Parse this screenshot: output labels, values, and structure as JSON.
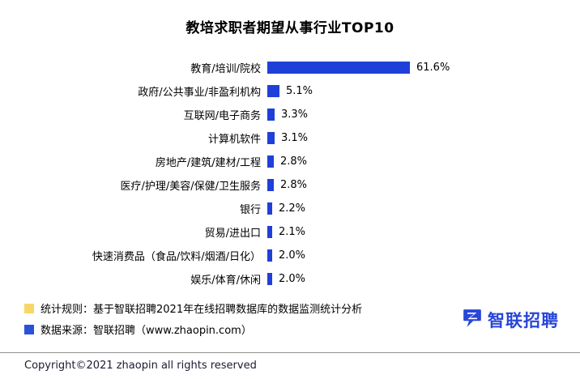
{
  "chart_data": {
    "type": "bar",
    "orientation": "horizontal",
    "title": "教培求职者期望从事行业TOP10",
    "unit": "%",
    "categories": [
      "教育/培训/院校",
      "政府/公共事业/非盈利机构",
      "互联网/电子商务",
      "计算机软件",
      "房地产/建筑/建材/工程",
      "医疗/护理/美容/保健/卫生服务",
      "银行",
      "贸易/进出口",
      "快速消费品（食品/饮料/烟酒/日化）",
      "娱乐/体育/休闲"
    ],
    "values": [
      61.6,
      5.1,
      3.3,
      3.1,
      2.8,
      2.8,
      2.2,
      2.1,
      2.0,
      2.0
    ],
    "value_labels": [
      "61.6%",
      "5.1%",
      "3.3%",
      "3.1%",
      "2.8%",
      "2.8%",
      "2.2%",
      "2.1%",
      "2.0%",
      "2.0%"
    ],
    "bar_color": "#1e40d8",
    "xlim": [
      0,
      70
    ],
    "grid": false,
    "legend": false
  },
  "notes": [
    {
      "marker_color": "#f7d768",
      "text": "统计规则：基于智联招聘2021年在线招聘数据库的数据监测统计分析"
    },
    {
      "marker_color": "#2a52d8",
      "text": "数据来源：智联招聘（www.zhaopin.com）"
    }
  ],
  "logo": {
    "text": "智联招聘",
    "color": "#2846d8"
  },
  "footer": {
    "copyright": "Copyright©2021 zhaopin all rights reserved"
  }
}
